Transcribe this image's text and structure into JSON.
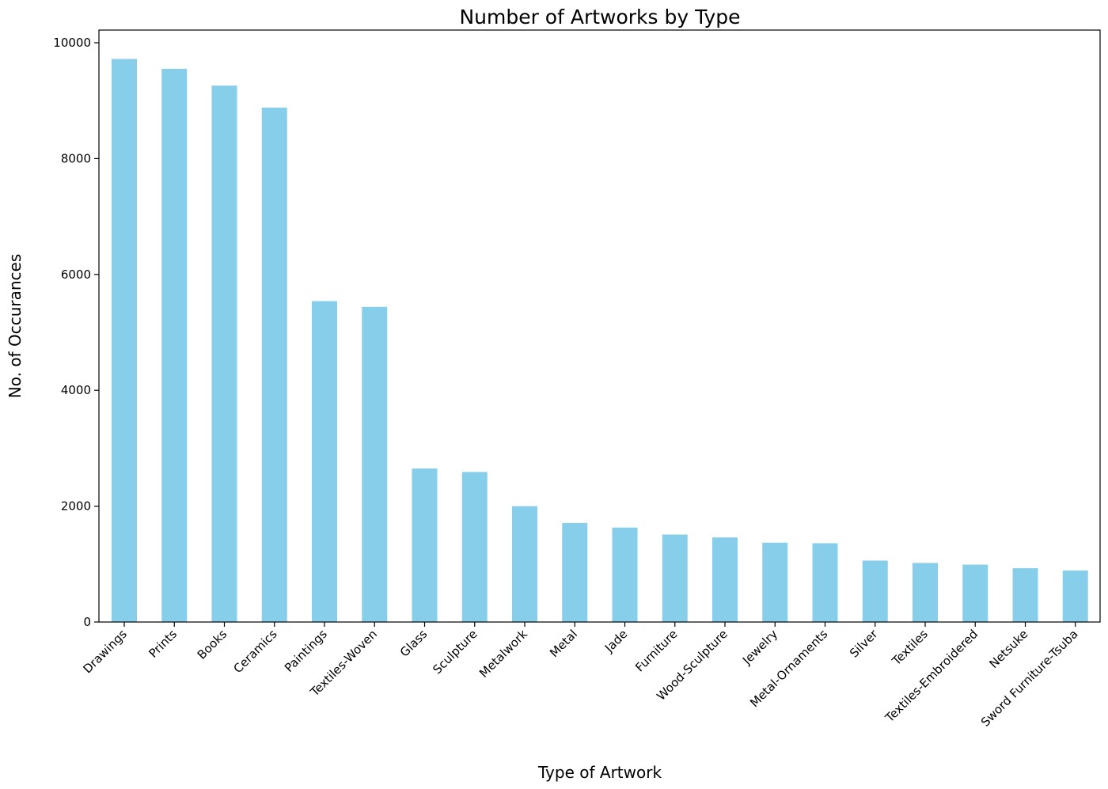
{
  "chart_data": {
    "type": "bar",
    "title": "Number of Artworks by Type",
    "xlabel": "Type of Artwork",
    "ylabel": "No. of Occurances",
    "categories": [
      "Drawings",
      "Prints",
      "Books",
      "Ceramics",
      "Paintings",
      "Textiles-Woven",
      "Glass",
      "Sculpture",
      "Metalwork",
      "Metal",
      "Jade",
      "Furniture",
      "Wood-Sculpture",
      "Jewelry",
      "Metal-Ornaments",
      "Silver",
      "Textiles",
      "Textiles-Embroidered",
      "Netsuke",
      "Sword Furniture-Tsuba"
    ],
    "values": [
      9720,
      9550,
      9260,
      8880,
      5540,
      5440,
      2650,
      2590,
      2000,
      1710,
      1630,
      1510,
      1460,
      1370,
      1360,
      1060,
      1020,
      990,
      930,
      890
    ],
    "ylim": [
      0,
      10000
    ],
    "yticks": [
      0,
      2000,
      4000,
      6000,
      8000,
      10000
    ],
    "bar_color": "#87ceeb",
    "grid": false,
    "legend": "none"
  }
}
